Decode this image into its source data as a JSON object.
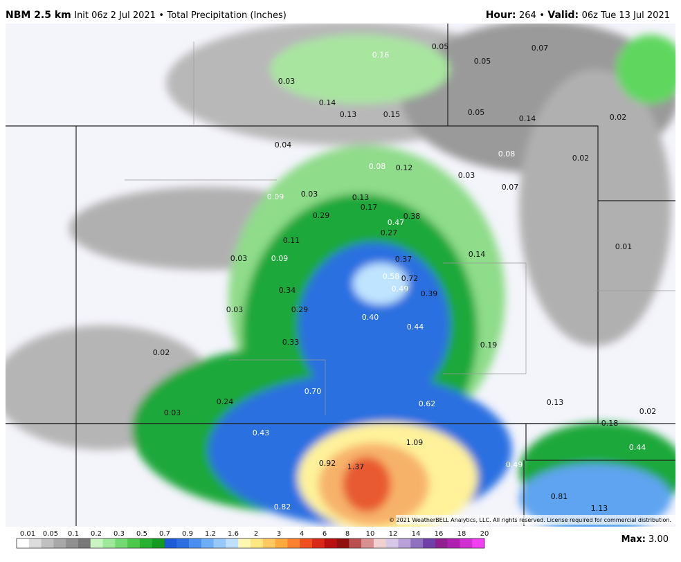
{
  "header": {
    "model": "NBM 2.5 km",
    "init": "Init 06z 2 Jul 2021",
    "separator": "•",
    "product": "Total Precipitation (Inches)",
    "hour_label": "Hour:",
    "hour": "264",
    "valid_label": "Valid:",
    "valid": "06z Tue 13 Jul 2021"
  },
  "map_labels": [
    "0.05",
    "0.07",
    "0.16",
    "0.05",
    "0.03",
    "0.14",
    "0.13",
    "0.15",
    "0.05",
    "0.14",
    "0.02",
    "0.04",
    "0.08",
    "0.02",
    "0.08",
    "0.12",
    "0.03",
    "0.07",
    "0.09",
    "0.03",
    "0.13",
    "0.17",
    "0.29",
    "0.38",
    "0.47",
    "0.27",
    "0.11",
    "0.01",
    "0.03",
    "0.09",
    "0.37",
    "0.14",
    "0.58",
    "0.72",
    "0.49",
    "0.39",
    "0.34",
    "0.29",
    "0.03",
    "0.40",
    "0.44",
    "0.33",
    "0.19",
    "0.02",
    "0.70",
    "0.24",
    "0.62",
    "0.13",
    "0.03",
    "0.02",
    "0.18",
    "0.43",
    "1.09",
    "0.44",
    "0.92",
    "1.37",
    "0.49",
    "0.81",
    "1.13",
    "0.82"
  ],
  "copyright": "© 2021 WeatherBELL Analytics, LLC. All rights reserved. License required for commercial distribution.",
  "scale_labels": [
    "0.01",
    "0.05",
    "0.1",
    "0.2",
    "0.3",
    "0.5",
    "0.7",
    "0.9",
    "1.2",
    "1.6",
    "2",
    "3",
    "4",
    "6",
    "8",
    "10",
    "12",
    "14",
    "16",
    "18",
    "20"
  ],
  "max": {
    "label": "Max:",
    "value": "3.00"
  }
}
